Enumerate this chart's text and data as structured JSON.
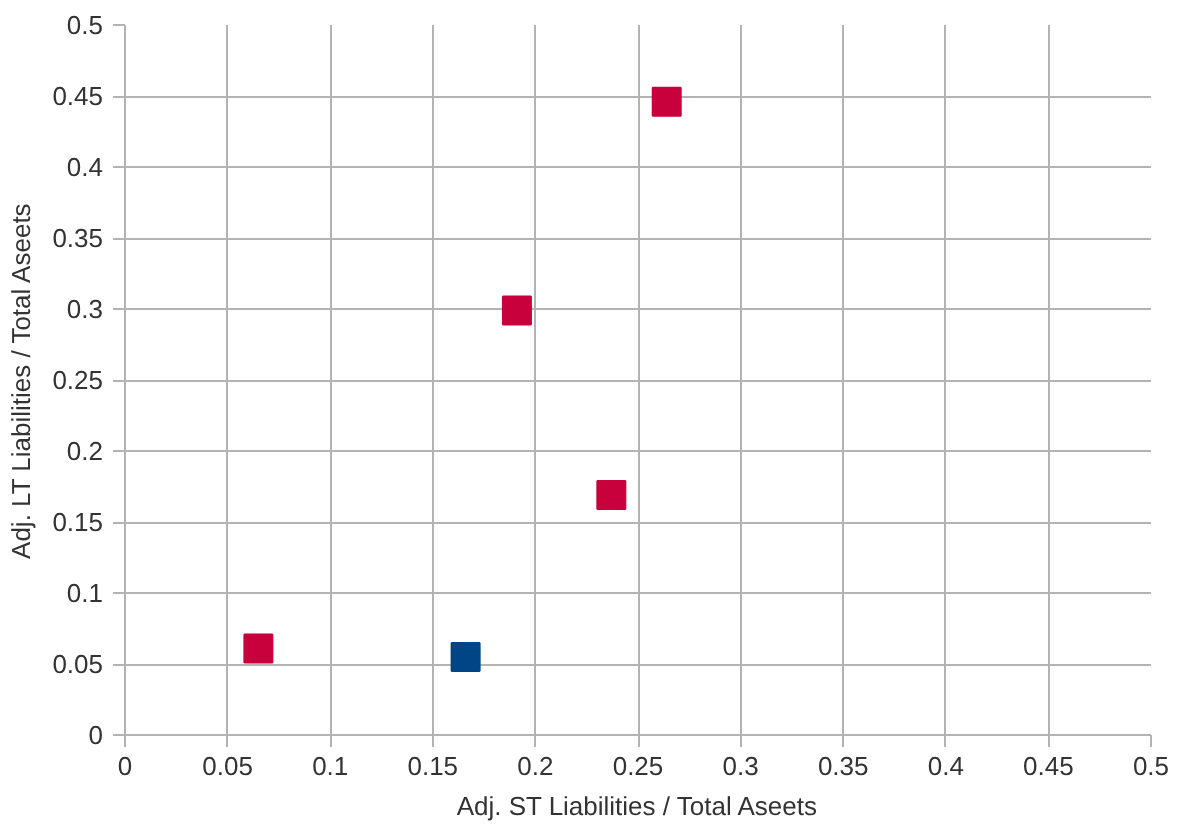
{
  "chart_data": {
    "type": "scatter",
    "xlabel": "Adj. ST Liabilities / Total Aseets",
    "ylabel": "Adj. LT Liabilities / Total Aseets",
    "series": [
      {
        "color": "#c8003c",
        "x": [
          0.065,
          0.191,
          0.237,
          0.264
        ],
        "values": [
          0.061,
          0.299,
          0.169,
          0.446
        ]
      },
      {
        "color": "#004586",
        "x": [
          0.166
        ],
        "values": [
          0.055
        ]
      }
    ],
    "xlim": [
      0,
      0.5
    ],
    "ylim": [
      0,
      0.5
    ],
    "xticks": [
      0,
      0.05,
      0.1,
      0.15,
      0.2,
      0.25,
      0.3,
      0.35,
      0.4,
      0.45,
      0.5
    ],
    "yticks": [
      0,
      0.05,
      0.1,
      0.15,
      0.2,
      0.25,
      0.3,
      0.35,
      0.4,
      0.45,
      0.5
    ],
    "grid": true,
    "marker": "square"
  }
}
